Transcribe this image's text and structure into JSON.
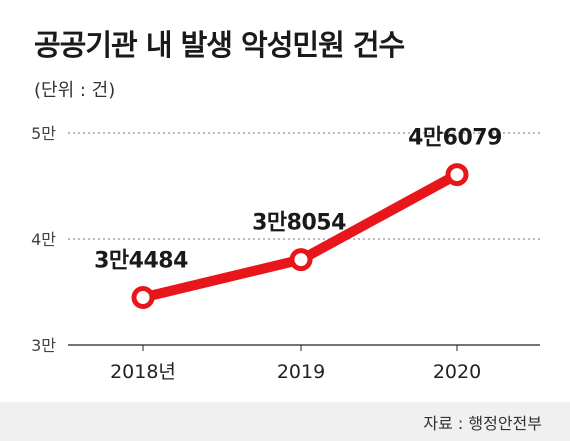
{
  "title": "공공기관 내 발생 악성민원 건수",
  "unit_label": "(단위 : 건)",
  "source": "자료 : 행정안전부",
  "colors": {
    "line": "#e8161b",
    "text": "#1a1a1a",
    "grid": "#777777"
  },
  "chart_data": {
    "type": "line",
    "categories": [
      "2018년",
      "2019",
      "2020"
    ],
    "values": [
      34484,
      38054,
      46079
    ],
    "data_labels": [
      "3만4484",
      "3만8054",
      "4만6079"
    ],
    "ylim": [
      30000,
      50000
    ],
    "yticks": [
      30000,
      40000,
      50000
    ],
    "ytick_labels": [
      "3만",
      "4만",
      "5만"
    ],
    "grid": true
  }
}
